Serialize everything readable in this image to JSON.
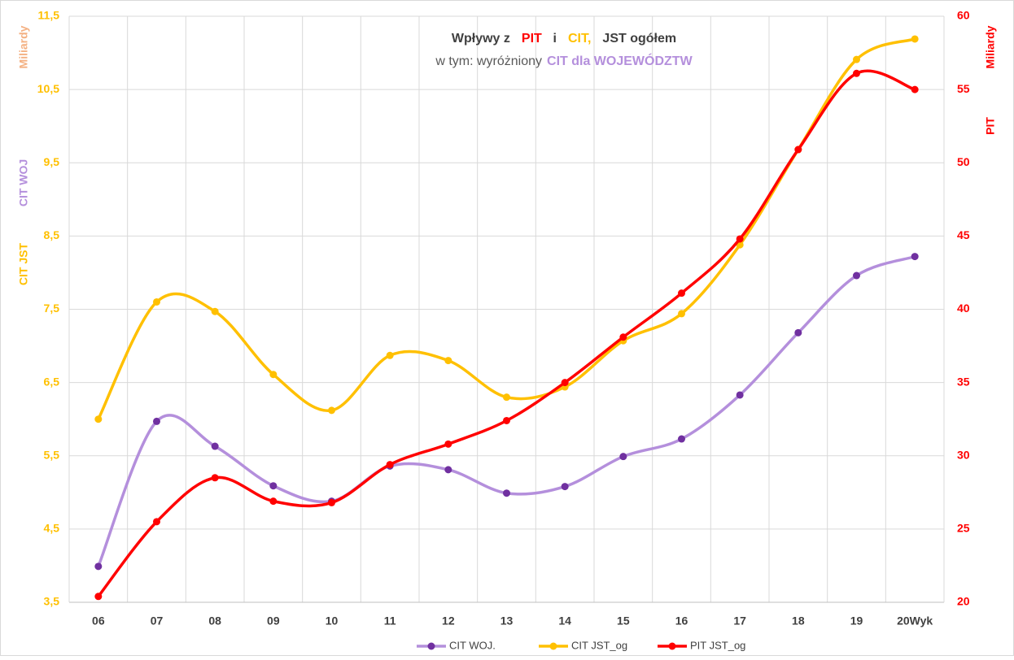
{
  "chart_data": {
    "type": "line",
    "title": [
      {
        "text": "Wpływy z",
        "color": "#404040"
      },
      {
        "text": "PIT",
        "color": "#ff0000"
      },
      {
        "text": "i",
        "color": "#404040"
      },
      {
        "text": "CIT,",
        "color": "#ffc000"
      },
      {
        "text": "JST ogółem",
        "color": "#404040"
      }
    ],
    "subtitle": [
      {
        "text": "w tym:  wyróżniony",
        "color": "#595959"
      },
      {
        "text": "CIT  dla WOJEWÓDZTW",
        "color": "#b48fdc"
      }
    ],
    "y_axis_labels": [
      {
        "text": "Miliardy",
        "color": "#f4b183"
      },
      {
        "text": "CIT  WOJ",
        "color": "#b48fdc"
      },
      {
        "text": "CIT  JST",
        "color": "#ffc000"
      }
    ],
    "y2_axis_labels": [
      {
        "text": "Miliardy",
        "color": "#ff0000"
      },
      {
        "text": "PIT",
        "color": "#ff0000"
      }
    ],
    "categories": [
      "06",
      "07",
      "08",
      "09",
      "10",
      "11",
      "12",
      "13",
      "14",
      "15",
      "16",
      "17",
      "18",
      "19",
      "20Wyk"
    ],
    "series": [
      {
        "name": "CIT WOJ.",
        "color": "#b48fdc",
        "marker_color": "#7030a0",
        "values": [
          3.99,
          5.97,
          5.63,
          5.09,
          4.88,
          5.36,
          5.31,
          4.99,
          5.08,
          5.49,
          5.73,
          6.33,
          7.18,
          7.96,
          8.22
        ]
      },
      {
        "name": "CIT JST_og",
        "color": "#ffc000",
        "marker_color": "#ffc000",
        "values": [
          6.0,
          7.6,
          7.47,
          6.61,
          6.12,
          6.87,
          6.8,
          6.3,
          6.44,
          7.07,
          7.44,
          8.38,
          9.68,
          10.91,
          11.19
        ]
      },
      {
        "name": "PIT JST_og",
        "color": "#ff0000",
        "marker_color": "#ff0000",
        "axis": "y2",
        "values": [
          20.4,
          25.5,
          28.5,
          26.9,
          26.8,
          29.4,
          30.8,
          32.4,
          35.0,
          38.1,
          41.1,
          44.8,
          50.9,
          56.1,
          55.0
        ]
      }
    ],
    "ylim": [
      3.5,
      11.5
    ],
    "yticks": [
      {
        "value": 3.5,
        "label": "3,5"
      },
      {
        "value": 4.5,
        "label": "4,5"
      },
      {
        "value": 5.5,
        "label": "5,5"
      },
      {
        "value": 6.5,
        "label": "6,5"
      },
      {
        "value": 7.5,
        "label": "7,5"
      },
      {
        "value": 8.5,
        "label": "8,5"
      },
      {
        "value": 9.5,
        "label": "9,5"
      },
      {
        "value": 10.5,
        "label": "10,5"
      },
      {
        "value": 11.5,
        "label": "11,5"
      }
    ],
    "y2lim": [
      20,
      60
    ],
    "y2ticks": [
      20,
      25,
      30,
      35,
      40,
      45,
      50,
      55,
      60
    ],
    "ytick_color": "#ffc000",
    "y2tick_color": "#ff0000",
    "grid": true,
    "smooth": true,
    "legend": "bottom"
  }
}
